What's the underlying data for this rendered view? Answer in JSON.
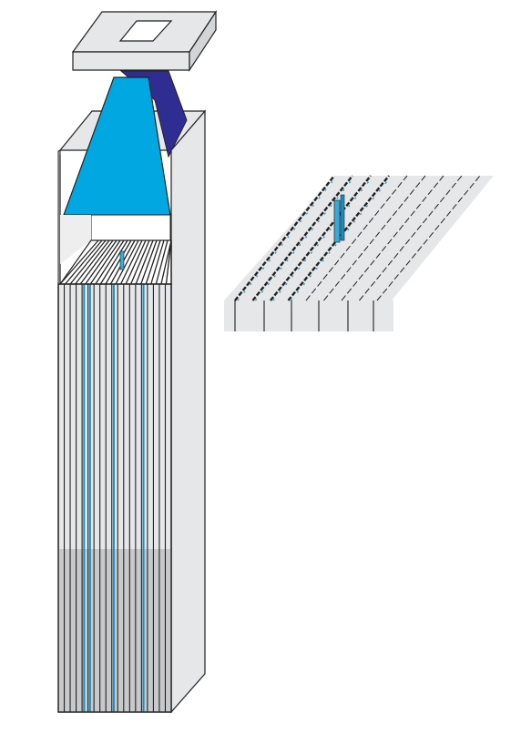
{
  "colors": {
    "background": "#ffffff",
    "panel_light": "#e6e7e9",
    "panel_mid": "#d4d5d7",
    "panel_dark": "#c9cacb",
    "lower_fill": "#c8c9ca",
    "outline": "#222222",
    "fiber_blue": "#1b8fc0",
    "funnel_front": "#00a7e1",
    "funnel_side": "#2f2d92",
    "highlight_blue": "#3aa9d8"
  },
  "icons": {
    "cap": "square-frame-icon",
    "funnel": "light-guide-funnel-icon",
    "grid": "slanted-grid-icon"
  },
  "assembly": {
    "fiber_count": 19,
    "blue_fiber_positions": [
      4,
      5,
      9,
      14
    ]
  },
  "detail": {
    "row_count": 9,
    "highlighted_fiber_index": 4
  }
}
